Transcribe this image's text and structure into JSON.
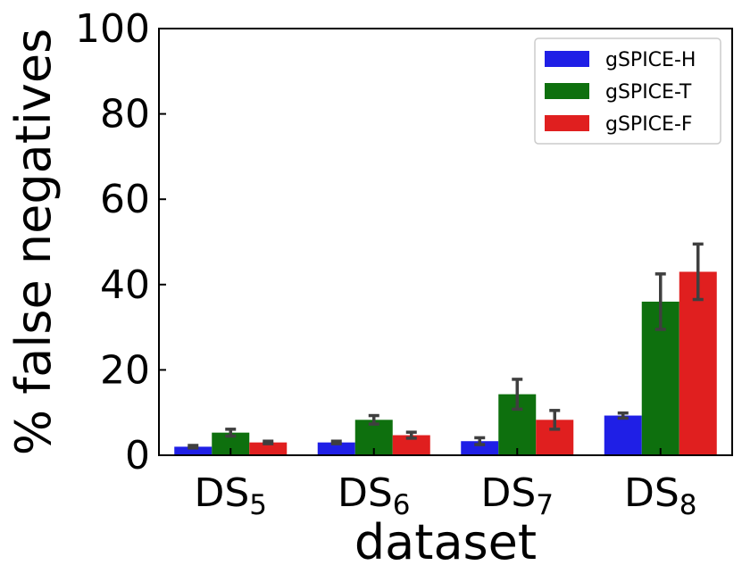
{
  "chart_data": {
    "type": "bar",
    "title": "",
    "xlabel": "dataset",
    "ylabel": "% false negatives",
    "ylim": [
      0,
      100
    ],
    "yticks": [
      "0",
      "20",
      "40",
      "60",
      "80",
      "100"
    ],
    "categories": [
      {
        "base": "DS",
        "sub": "5"
      },
      {
        "base": "DS",
        "sub": "6"
      },
      {
        "base": "DS",
        "sub": "7"
      },
      {
        "base": "DS",
        "sub": "8"
      }
    ],
    "series": [
      {
        "name": "gSPICE-H",
        "color": "#1f1fe6",
        "values": [
          2.0,
          3.0,
          3.3,
          9.3
        ],
        "errors": [
          0.3,
          0.3,
          0.8,
          0.6
        ]
      },
      {
        "name": "gSPICE-T",
        "color": "#0e700e",
        "values": [
          5.3,
          8.3,
          14.3,
          36.0
        ],
        "errors": [
          0.8,
          1.0,
          3.5,
          6.5
        ]
      },
      {
        "name": "gSPICE-F",
        "color": "#e01f1f",
        "values": [
          3.0,
          4.7,
          8.3,
          43.0
        ],
        "errors": [
          0.3,
          0.7,
          2.2,
          6.5
        ]
      }
    ],
    "legend_position": "top-right",
    "grid": false
  }
}
